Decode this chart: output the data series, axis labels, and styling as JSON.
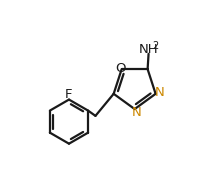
{
  "bg_color": "#ffffff",
  "line_color": "#1a1a1a",
  "label_color_N": "#cc8800",
  "line_width": 1.6,
  "figsize": [
    2.06,
    1.74
  ],
  "dpi": 100,
  "xlim": [
    0.0,
    1.0
  ],
  "ylim": [
    0.05,
    0.95
  ]
}
